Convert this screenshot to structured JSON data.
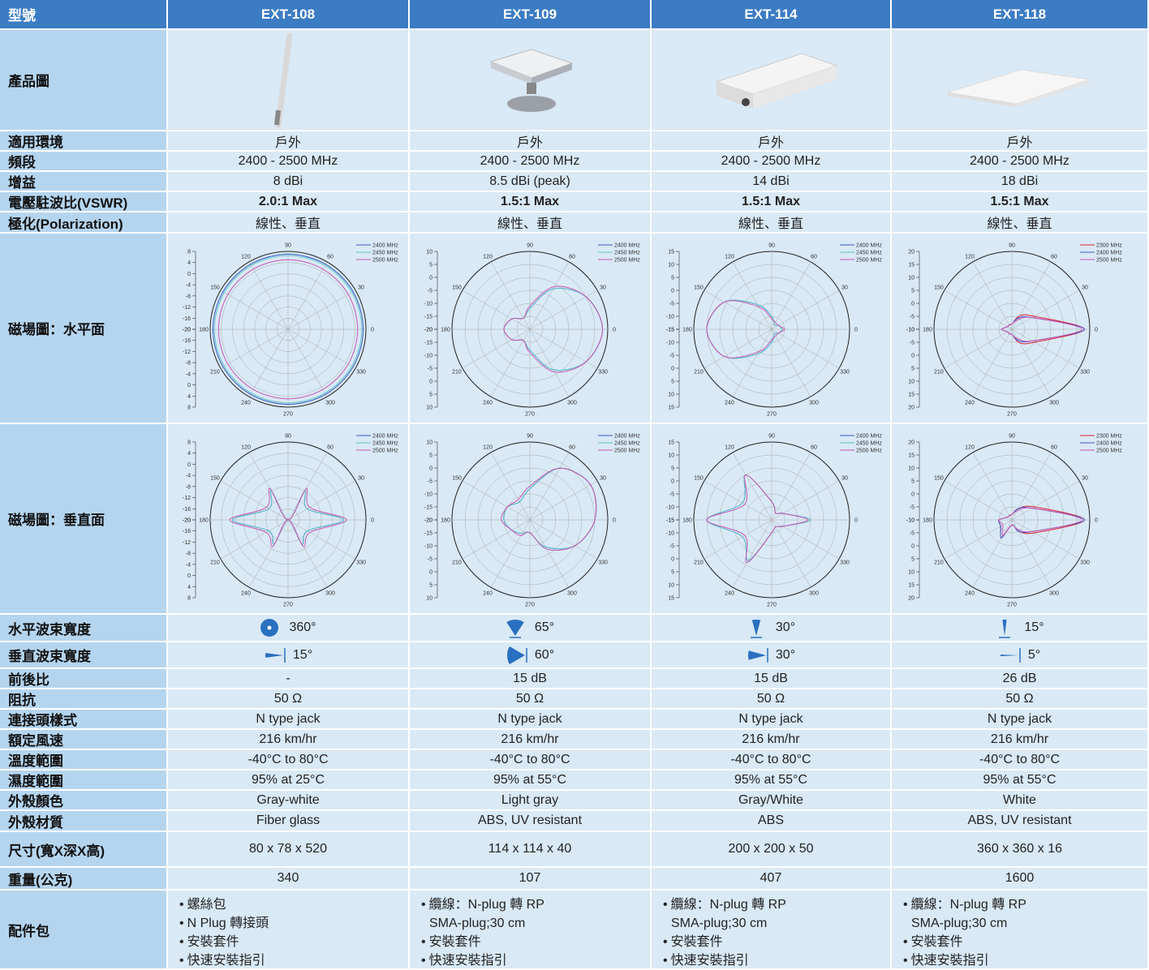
{
  "header": {
    "label": "型號",
    "models": [
      "EXT-108",
      "EXT-109",
      "EXT-114",
      "EXT-118"
    ]
  },
  "rows": [
    {
      "label": "產品圖"
    },
    {
      "label": "適用環境",
      "cells": [
        "戶外",
        "戶外",
        "戶外",
        "戶外"
      ]
    },
    {
      "label": "頻段",
      "cells": [
        "2400 - 2500 MHz",
        "2400 - 2500 MHz",
        "2400 - 2500 MHz",
        "2400 - 2500 MHz"
      ]
    },
    {
      "label": "增益",
      "cells": [
        "8 dBi",
        "8.5 dBi (peak)",
        "14 dBi",
        "18 dBi"
      ]
    },
    {
      "label": "電壓駐波比(VSWR)",
      "cells": [
        "2.0:1 Max",
        "1.5:1 Max",
        "1.5:1 Max",
        "1.5:1 Max"
      ]
    },
    {
      "label": "極化(Polarization)",
      "cells": [
        "線性、垂直",
        "線性、垂直",
        "線性、垂直",
        "線性、垂直"
      ]
    },
    {
      "label": "磁場圖：水平面",
      "cells": [
        {
          "rlim": [
            -20,
            8
          ],
          "rticks": [
            8,
            4,
            0,
            -4,
            -8,
            -12,
            -16,
            -20
          ],
          "angles": [
            0,
            30,
            60,
            90,
            120,
            150,
            180,
            210,
            240,
            270,
            300,
            330
          ],
          "series": [
            {
              "name": "2400 MHz",
              "color": "#3a56c8",
              "values": [
                7,
                7,
                7,
                7,
                7,
                7,
                7,
                7,
                7,
                7,
                7,
                7
              ]
            },
            {
              "name": "2450 MHz",
              "color": "#5fc4c4",
              "values": [
                6.5,
                6.5,
                6.5,
                6.5,
                6.5,
                6.5,
                6.5,
                6.5,
                6.5,
                6.5,
                6.5,
                6.5
              ]
            },
            {
              "name": "2500 MHz",
              "color": "#c856b0",
              "values": [
                5,
                5,
                5,
                5,
                5,
                5,
                5,
                5,
                5,
                5,
                5,
                5
              ]
            }
          ]
        },
        {
          "rlim": [
            -20,
            10
          ],
          "rticks": [
            10,
            5,
            0,
            -5,
            -10,
            -15,
            -20
          ],
          "angles": [
            0,
            30,
            60,
            90,
            120,
            150,
            180,
            210,
            240,
            270,
            300,
            330
          ],
          "series": [
            {
              "name": "2400 MHz",
              "color": "#3a56c8",
              "values": [
                8,
                5,
                -2,
                -12,
                -15,
                -12,
                -10,
                -12,
                -15,
                -12,
                -2,
                5
              ]
            },
            {
              "name": "2450 MHz",
              "color": "#5fc4c4",
              "values": [
                8,
                5,
                -2,
                -12,
                -15,
                -12,
                -10,
                -12,
                -15,
                -12,
                -2,
                5
              ]
            },
            {
              "name": "2500 MHz",
              "color": "#c856b0",
              "values": [
                8,
                5,
                -1,
                -11,
                -15,
                -12,
                -10,
                -12,
                -15,
                -11,
                -1,
                5
              ]
            }
          ]
        },
        {
          "rlim": [
            -15,
            15
          ],
          "rticks": [
            15,
            10,
            5,
            0,
            -5,
            -10,
            -15
          ],
          "angles": [
            0,
            30,
            60,
            90,
            120,
            150,
            180,
            210,
            240,
            270,
            300,
            330
          ],
          "series": [
            {
              "name": "2400 MHz",
              "color": "#3a56c8",
              "values": [
                -11,
                -12,
                -13,
                -10,
                -4,
                6,
                10,
                6,
                -4,
                -10,
                -13,
                -12
              ]
            },
            {
              "name": "2450 MHz",
              "color": "#5fc4c4",
              "values": [
                -11,
                -12,
                -13,
                -10,
                -4,
                6,
                10,
                6,
                -4,
                -10,
                -13,
                -12
              ]
            },
            {
              "name": "2500 MHz",
              "color": "#c856b0",
              "values": [
                -10,
                -12,
                -12,
                -11,
                -5,
                6,
                10,
                6,
                -5,
                -11,
                -12,
                -12
              ]
            }
          ]
        },
        {
          "rlim": [
            -10,
            20
          ],
          "rticks": [
            20,
            15,
            10,
            5,
            0,
            -5,
            -10
          ],
          "angles": [
            0,
            30,
            60,
            90,
            120,
            150,
            180,
            210,
            240,
            270,
            300,
            330
          ],
          "series": [
            {
              "name": "2300 MHz",
              "color": "#e02030",
              "values": [
                18,
                0,
                -4,
                -8,
                -8,
                -8,
                -6,
                -8,
                -8,
                -8,
                -4,
                0
              ]
            },
            {
              "name": "2400 MHz",
              "color": "#3a56c8",
              "values": [
                18,
                -1,
                -5,
                -8,
                -8,
                -8,
                -6,
                -8,
                -8,
                -8,
                -5,
                -1
              ]
            },
            {
              "name": "2500 MHz",
              "color": "#c856b0",
              "values": [
                17,
                -1,
                -6,
                -8,
                -8,
                -8,
                -6,
                -8,
                -8,
                -8,
                -6,
                -1
              ]
            }
          ]
        }
      ]
    },
    {
      "label": "磁場圖：垂直面",
      "cells": [
        {
          "rlim": [
            -20,
            8
          ],
          "rticks": [
            8,
            4,
            0,
            -4,
            -8,
            -12,
            -16,
            -20
          ],
          "angles": [
            0,
            30,
            60,
            90,
            120,
            150,
            180,
            210,
            240,
            270,
            300,
            330
          ],
          "series": [
            {
              "name": "2400 MHz",
              "color": "#3a56c8",
              "values": [
                0,
                -12,
                -8,
                -20,
                -8,
                -12,
                0,
                -12,
                -10,
                -20,
                -10,
                -12
              ]
            },
            {
              "name": "2450 MHz",
              "color": "#5fc4c4",
              "values": [
                0,
                -12,
                -8,
                -20,
                -8,
                -12,
                0,
                -12,
                -10,
                -20,
                -10,
                -12
              ]
            },
            {
              "name": "2500 MHz",
              "color": "#c856b0",
              "values": [
                1,
                -11,
                -7,
                -20,
                -7,
                -11,
                1,
                -11,
                -9,
                -20,
                -9,
                -11
              ]
            }
          ]
        },
        {
          "rlim": [
            -20,
            10
          ],
          "rticks": [
            10,
            5,
            0,
            -5,
            -10,
            -15,
            -20
          ],
          "angles": [
            0,
            30,
            60,
            90,
            120,
            150,
            180,
            210,
            240,
            270,
            300,
            330
          ],
          "series": [
            {
              "name": "2400 MHz",
              "color": "#3a56c8",
              "values": [
                5,
                7,
                3,
                -8,
                -12,
                -10,
                -10,
                -12,
                -14,
                -15,
                -8,
                0
              ]
            },
            {
              "name": "2450 MHz",
              "color": "#5fc4c4",
              "values": [
                5,
                7,
                3,
                -8,
                -12,
                -10,
                -10,
                -12,
                -14,
                -15,
                -8,
                0
              ]
            },
            {
              "name": "2500 MHz",
              "color": "#c856b0",
              "values": [
                5,
                7,
                3,
                -7,
                -11,
                -10,
                -9,
                -12,
                -13,
                -15,
                -7,
                0
              ]
            }
          ]
        },
        {
          "rlim": [
            -15,
            15
          ],
          "rticks": [
            15,
            10,
            5,
            0,
            -5,
            -10,
            -15
          ],
          "angles": [
            0,
            30,
            60,
            90,
            120,
            150,
            180,
            210,
            240,
            270,
            300,
            330
          ],
          "series": [
            {
              "name": "2400 MHz",
              "color": "#3a56c8",
              "values": [
                0,
                -10,
                -12,
                -8,
                5,
                -2,
                10,
                -2,
                3,
                -10,
                -12,
                -10
              ]
            },
            {
              "name": "2450 MHz",
              "color": "#5fc4c4",
              "values": [
                0,
                -10,
                -12,
                -8,
                5,
                -2,
                10,
                -2,
                3,
                -10,
                -12,
                -10
              ]
            },
            {
              "name": "2500 MHz",
              "color": "#c856b0",
              "values": [
                -1,
                -10,
                -12,
                -8,
                5,
                -3,
                10,
                -3,
                4,
                -10,
                -12,
                -10
              ]
            }
          ]
        },
        {
          "rlim": [
            -10,
            20
          ],
          "rticks": [
            20,
            15,
            10,
            5,
            0,
            -5,
            -10
          ],
          "angles": [
            0,
            30,
            60,
            90,
            120,
            150,
            180,
            210,
            240,
            270,
            300,
            330
          ],
          "series": [
            {
              "name": "2300 MHz",
              "color": "#e02030",
              "values": [
                18,
                0,
                -5,
                -8,
                -8,
                -8,
                -5,
                -5,
                -2,
                -8,
                -5,
                0
              ]
            },
            {
              "name": "2400 MHz",
              "color": "#3a56c8",
              "values": [
                18,
                -1,
                -5,
                -8,
                -8,
                -8,
                -5,
                -5,
                -2,
                -8,
                -5,
                -1
              ]
            },
            {
              "name": "2500 MHz",
              "color": "#c856b0",
              "values": [
                17,
                -1,
                -6,
                -8,
                -8,
                -8,
                -5,
                -6,
                -3,
                -8,
                -6,
                -1
              ]
            }
          ]
        }
      ]
    },
    {
      "label": "水平波束寬度",
      "cells": [
        "360°",
        "65°",
        "30°",
        "15°"
      ]
    },
    {
      "label": "垂直波束寬度",
      "cells": [
        "15°",
        "60°",
        "30°",
        "5°"
      ]
    },
    {
      "label": "前後比",
      "cells": [
        "-",
        "15 dB",
        "15 dB",
        "26 dB"
      ]
    },
    {
      "label": "阻抗",
      "cells": [
        "50 Ω",
        "50 Ω",
        "50 Ω",
        "50 Ω"
      ]
    },
    {
      "label": "連接頭樣式",
      "cells": [
        "N type jack",
        "N type jack",
        "N type jack",
        "N type jack"
      ]
    },
    {
      "label": "額定風速",
      "cells": [
        "216 km/hr",
        "216 km/hr",
        "216 km/hr",
        "216 km/hr"
      ]
    },
    {
      "label": "溫度範圍",
      "cells": [
        "-40°C to 80°C",
        "-40°C to 80°C",
        "-40°C to 80°C",
        "-40°C to 80°C"
      ]
    },
    {
      "label": "濕度範圍",
      "cells": [
        "95% at 25°C",
        "95% at 55°C",
        "95% at 55°C",
        "95% at 55°C"
      ]
    },
    {
      "label": "外殼顏色",
      "cells": [
        "Gray-white",
        "Light gray",
        "Gray/White",
        "White"
      ]
    },
    {
      "label": "外殼材質",
      "cells": [
        "Fiber glass",
        "ABS, UV resistant",
        "ABS",
        "ABS, UV resistant"
      ]
    },
    {
      "label": "尺寸(寬X深X高)",
      "cells": [
        "80 x 78 x 520",
        "114 x 114 x 40",
        "200 x 200 x 50",
        "360 x 360 x 16"
      ]
    },
    {
      "label": "重量(公克)",
      "cells": [
        "340",
        "107",
        "407",
        "1600"
      ]
    },
    {
      "label": "配件包",
      "cells": [
        [
          "螺絲包",
          "N Plug 轉接頭",
          "安裝套件",
          "快速安裝指引"
        ],
        [
          "纜線：N-plug 轉 RP SMA-plug;30 cm",
          "安裝套件",
          "快速安裝指引"
        ],
        [
          "纜線：N-plug 轉 RP SMA-plug;30 cm",
          "安裝套件",
          "快速安裝指引"
        ],
        [
          "纜線：N-plug 轉 RP SMA-plug;30 cm",
          "安裝套件",
          "快速安裝指引"
        ]
      ]
    }
  ]
}
